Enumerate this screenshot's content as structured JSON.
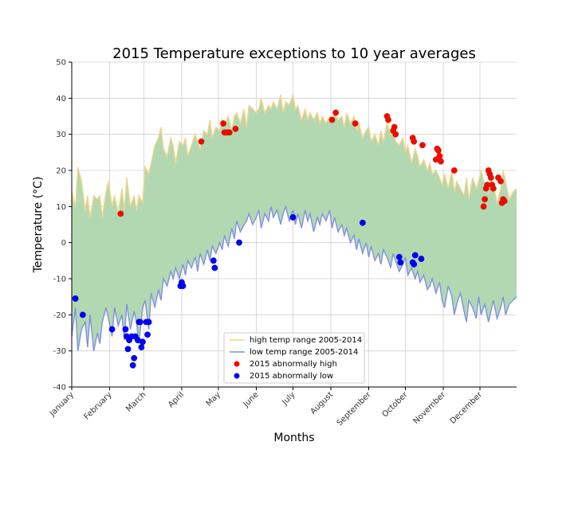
{
  "chart_data": {
    "type": "line",
    "title": "2015 Temperature exceptions to 10 year averages",
    "xlabel": "Months",
    "ylabel": "Temperature ($^\\circ C$)",
    "ylabel_display": "Temperature (°C)",
    "ylim": [
      -40,
      50
    ],
    "yticks": [
      -40,
      -30,
      -20,
      -10,
      0,
      10,
      20,
      30,
      40,
      50
    ],
    "xlim": [
      1,
      365
    ],
    "months": [
      {
        "label": "January",
        "day": 1
      },
      {
        "label": "February",
        "day": 32
      },
      {
        "label": "March",
        "day": 60
      },
      {
        "label": "April",
        "day": 91
      },
      {
        "label": "May",
        "day": 121
      },
      {
        "label": "June",
        "day": 152
      },
      {
        "label": "July",
        "day": 182
      },
      {
        "label": "August",
        "day": 213
      },
      {
        "label": "September",
        "day": 244
      },
      {
        "label": "October",
        "day": 274
      },
      {
        "label": "November",
        "day": 305
      },
      {
        "label": "December",
        "day": 335
      }
    ],
    "grid": true,
    "legend_position": "lower-center",
    "fill_color": "#b2d8b2",
    "series": [
      {
        "name": "high temp range 2005-2014",
        "kind": "line",
        "color": "#f5d58a",
        "x": [
          1,
          4,
          6,
          9,
          12,
          14,
          16,
          19,
          22,
          24,
          26,
          29,
          31,
          34,
          36,
          39,
          42,
          44,
          46,
          49,
          52,
          54,
          56,
          59,
          61,
          64,
          66,
          69,
          72,
          74,
          76,
          79,
          82,
          84,
          86,
          89,
          92,
          94,
          96,
          99,
          102,
          104,
          106,
          109,
          112,
          114,
          116,
          119,
          122,
          124,
          126,
          129,
          132,
          134,
          136,
          139,
          142,
          144,
          146,
          149,
          152,
          154,
          156,
          159,
          162,
          164,
          166,
          169,
          172,
          174,
          176,
          179,
          182,
          184,
          186,
          189,
          192,
          194,
          196,
          199,
          202,
          204,
          206,
          209,
          212,
          214,
          216,
          219,
          222,
          224,
          226,
          229,
          232,
          234,
          236,
          239,
          242,
          244,
          246,
          249,
          252,
          254,
          256,
          259,
          262,
          264,
          266,
          269,
          272,
          274,
          276,
          279,
          282,
          284,
          286,
          289,
          292,
          294,
          296,
          299,
          302,
          304,
          306,
          309,
          312,
          314,
          316,
          319,
          322,
          324,
          326,
          329,
          332,
          334,
          336,
          339,
          342,
          344,
          346,
          349,
          352,
          354,
          356,
          359,
          362,
          365
        ],
        "y": [
          14,
          10,
          21,
          17,
          9,
          13,
          7,
          13,
          12,
          13,
          7,
          14,
          17,
          10,
          13,
          8,
          15,
          9,
          18,
          10,
          13,
          9,
          13,
          11,
          21,
          19,
          22,
          27,
          29,
          32,
          26,
          24,
          29,
          27,
          22,
          28,
          27,
          29,
          24,
          27,
          30,
          28,
          26,
          31,
          30,
          34,
          29,
          32,
          31,
          34,
          32,
          35,
          31,
          35,
          36,
          33,
          37,
          32,
          38,
          37,
          36,
          37,
          40,
          36,
          38,
          37,
          39,
          37,
          41,
          36,
          39,
          38,
          41,
          37,
          38,
          34,
          37,
          34,
          36,
          34,
          36,
          33,
          35,
          33,
          35,
          34,
          36,
          34,
          35,
          32,
          36,
          33,
          35,
          31,
          33,
          29,
          31,
          32,
          28,
          30,
          27,
          31,
          28,
          33,
          30,
          33,
          28,
          27,
          29,
          25,
          27,
          22,
          26,
          24,
          21,
          23,
          20,
          22,
          19,
          20,
          18,
          16,
          19,
          15,
          20,
          14,
          17,
          15,
          13,
          18,
          12,
          18,
          15,
          17,
          20,
          16,
          14,
          18,
          16,
          11,
          15,
          20,
          17,
          12,
          14,
          15
        ],
        "ranged_by": "data"
      },
      {
        "name": "low temp range 2005-2014",
        "kind": "line",
        "color": "#8090e0",
        "x": [
          1,
          4,
          6,
          9,
          12,
          14,
          16,
          19,
          22,
          24,
          26,
          29,
          31,
          34,
          36,
          39,
          42,
          44,
          46,
          49,
          52,
          54,
          56,
          59,
          61,
          64,
          66,
          69,
          72,
          74,
          76,
          79,
          82,
          84,
          86,
          89,
          92,
          94,
          96,
          99,
          102,
          104,
          106,
          109,
          112,
          114,
          116,
          119,
          122,
          124,
          126,
          129,
          132,
          134,
          136,
          139,
          142,
          144,
          146,
          149,
          152,
          154,
          156,
          159,
          162,
          164,
          166,
          169,
          172,
          174,
          176,
          179,
          182,
          184,
          186,
          189,
          192,
          194,
          196,
          199,
          202,
          204,
          206,
          209,
          212,
          214,
          216,
          219,
          222,
          224,
          226,
          229,
          232,
          234,
          236,
          239,
          242,
          244,
          246,
          249,
          252,
          254,
          256,
          259,
          262,
          264,
          266,
          269,
          272,
          274,
          276,
          279,
          282,
          284,
          286,
          289,
          292,
          294,
          296,
          299,
          302,
          304,
          306,
          309,
          312,
          314,
          316,
          319,
          322,
          324,
          326,
          329,
          332,
          334,
          336,
          339,
          342,
          344,
          346,
          349,
          352,
          354,
          356,
          359,
          362,
          365
        ],
        "y": [
          -26,
          -18,
          -30,
          -24,
          -22,
          -29,
          -20,
          -30,
          -25,
          -28,
          -22,
          -18,
          -21,
          -26,
          -18,
          -23,
          -20,
          -27,
          -17,
          -24,
          -19,
          -22,
          -28,
          -18,
          -16,
          -24,
          -14,
          -18,
          -13,
          -16,
          -10,
          -12,
          -8,
          -10,
          -7,
          -10,
          -6,
          -9,
          -5,
          -7,
          -4,
          -8,
          -3,
          -6,
          -2,
          -5,
          -1,
          -3,
          0,
          -2,
          2,
          -1,
          4,
          1,
          6,
          3,
          5,
          6,
          8,
          5,
          7,
          9,
          4,
          8,
          6,
          10,
          7,
          9,
          5,
          8,
          10,
          6,
          9,
          5,
          8,
          4,
          9,
          6,
          8,
          3,
          7,
          5,
          8,
          6,
          9,
          4,
          7,
          3,
          5,
          2,
          4,
          0,
          2,
          -2,
          1,
          -3,
          0,
          -4,
          -1,
          -5,
          -3,
          -6,
          -2,
          -4,
          -7,
          -3,
          -5,
          -8,
          -6,
          -4,
          -9,
          -7,
          -10,
          -8,
          -11,
          -9,
          -13,
          -12,
          -10,
          -14,
          -11,
          -16,
          -18,
          -12,
          -15,
          -20,
          -17,
          -14,
          -19,
          -22,
          -16,
          -18,
          -21,
          -15,
          -20,
          -17,
          -22,
          -19,
          -16,
          -21,
          -18,
          -15,
          -20,
          -17,
          -16,
          -15
        ],
        "ranged_by": "data"
      },
      {
        "name": "2015 abnormally high",
        "kind": "scatter",
        "color": "#ff0000",
        "edge_color": "#b03000",
        "x": [
          41,
          107,
          125,
          126,
          128,
          130,
          135,
          214,
          217,
          233,
          259,
          260,
          264,
          265,
          266,
          280,
          281,
          288,
          299,
          300,
          301,
          302,
          303,
          314,
          338,
          339,
          340,
          341,
          342,
          343,
          344,
          345,
          346,
          350,
          352,
          353,
          354,
          355
        ],
        "y": [
          8,
          28,
          33,
          30.5,
          30.5,
          30.5,
          31.5,
          34,
          36,
          33,
          35,
          34,
          31,
          32,
          30,
          29,
          28,
          27,
          23,
          26,
          25.5,
          24,
          22.5,
          20,
          10,
          12,
          15,
          16,
          20,
          19,
          18,
          16,
          15,
          18,
          17,
          11,
          12,
          11.5
        ]
      },
      {
        "name": "2015 abnormally low",
        "kind": "scatter",
        "color": "#0000ff",
        "edge_color": "#0000cc",
        "x": [
          4,
          10,
          34,
          45,
          46,
          47,
          48,
          50,
          51,
          52,
          53,
          55,
          56,
          57,
          58,
          59,
          62,
          63,
          64,
          90,
          91,
          92,
          117,
          118,
          138,
          182,
          239,
          269,
          270,
          280,
          281,
          282,
          287
        ],
        "y": [
          -15.5,
          -20,
          -24,
          -24,
          -26,
          -29.5,
          -27,
          -26,
          -34,
          -32,
          -26,
          -27,
          -22,
          -22,
          -29,
          -27.5,
          -22,
          -25.5,
          -22,
          -12,
          -11,
          -12,
          -5,
          -7,
          0,
          7,
          5.5,
          -4,
          -5.5,
          -5.5,
          -6,
          -3.5,
          -4.5
        ]
      }
    ]
  }
}
